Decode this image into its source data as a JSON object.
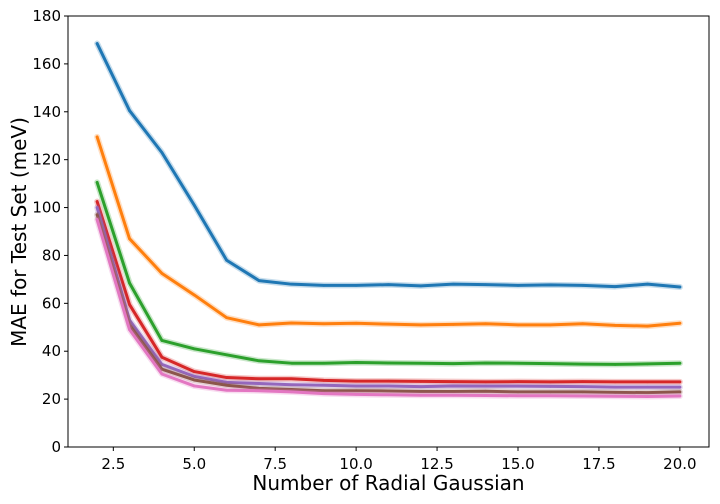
{
  "chart_data": {
    "type": "line",
    "title": "",
    "xlabel": "Number of Radial Gaussian",
    "ylabel": "MAE for Test Set (meV)",
    "xlim": [
      1.1,
      20.9
    ],
    "ylim": [
      0,
      180
    ],
    "xticks": [
      2.5,
      5.0,
      7.5,
      10.0,
      12.5,
      15.0,
      17.5,
      20.0
    ],
    "xtick_labels": [
      "2.5",
      "5.0",
      "7.5",
      "10.0",
      "12.5",
      "15.0",
      "17.5",
      "20.0"
    ],
    "yticks": [
      0,
      20,
      40,
      60,
      80,
      100,
      120,
      140,
      160,
      180
    ],
    "ytick_labels": [
      "0",
      "20",
      "40",
      "60",
      "80",
      "100",
      "120",
      "140",
      "160",
      "180"
    ],
    "grid": false,
    "legend": "none",
    "x": [
      2,
      3,
      4,
      5,
      6,
      7,
      8,
      9,
      10,
      11,
      12,
      13,
      14,
      15,
      16,
      17,
      18,
      19,
      20
    ],
    "series": [
      {
        "name": "blue",
        "color": "#1f77b4",
        "values": [
          168.5,
          140.5,
          123,
          101,
          78,
          69.5,
          68,
          67.5,
          67.5,
          67.8,
          67.3,
          68,
          67.8,
          67.5,
          67.7,
          67.5,
          67,
          68,
          66.8
        ]
      },
      {
        "name": "orange",
        "color": "#ff7f0e",
        "values": [
          129.5,
          87,
          72.5,
          63.5,
          54,
          51,
          51.8,
          51.5,
          51.7,
          51.3,
          51,
          51.2,
          51.5,
          51,
          51,
          51.5,
          50.8,
          50.5,
          51.7
        ]
      },
      {
        "name": "green",
        "color": "#2ca02c",
        "values": [
          110.5,
          68.5,
          44.5,
          41,
          38.5,
          36,
          35,
          35,
          35.3,
          35.1,
          35,
          34.8,
          35.1,
          35,
          34.8,
          34.6,
          34.5,
          34.7,
          35
        ]
      },
      {
        "name": "red",
        "color": "#d62728",
        "values": [
          102.5,
          59.5,
          37.5,
          31.5,
          29,
          28.5,
          28.5,
          27.8,
          27.5,
          27.5,
          27.4,
          27.3,
          27.2,
          27.3,
          27.2,
          27.3,
          27.2,
          27.2,
          27.2
        ]
      },
      {
        "name": "purple",
        "color": "#9467bd",
        "values": [
          100,
          53,
          34.5,
          29.5,
          27,
          26.5,
          26,
          25.8,
          25.5,
          25.5,
          25.2,
          25.5,
          25.4,
          25.4,
          25.3,
          25.2,
          25,
          25,
          25
        ]
      },
      {
        "name": "brown",
        "color": "#8c564b",
        "values": [
          97,
          51,
          32.5,
          28,
          25.8,
          24.5,
          24,
          23.5,
          23.5,
          23.4,
          23.2,
          23.2,
          23.3,
          23,
          23,
          23,
          22.8,
          22.7,
          23
        ]
      },
      {
        "name": "pink",
        "color": "#e377c2",
        "values": [
          95,
          49,
          30.5,
          25.5,
          23.7,
          23.5,
          23,
          22.3,
          22,
          21.8,
          21.6,
          21.6,
          21.5,
          21.4,
          21.4,
          21.3,
          21.2,
          21.1,
          21.3
        ]
      }
    ]
  }
}
